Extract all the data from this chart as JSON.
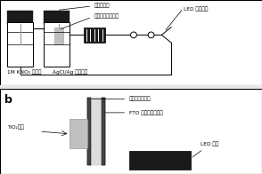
{
  "bg_color": "#e8e8e8",
  "panel_bg": "#ffffff",
  "text_color": "#000000",
  "dark": "#1a1a1a",
  "gray": "#999999",
  "lgray": "#c0c0c0",
  "annotations_a": {
    "quartz": "石英玻璃牙维",
    "tio2_elec": "二氧化钙薄膜电极",
    "led": "LED 紫外灯头",
    "kno3": "1M KNO３ 对电极",
    "agcl": "AgCl/Ag 参比电极"
  },
  "annotations_b": {
    "quartz_wall": "石英玻璃池的壁",
    "fto": "FTO 玻璃的非导电面",
    "tio2": "TiO₂薄膜",
    "led": "LED 灯头"
  }
}
